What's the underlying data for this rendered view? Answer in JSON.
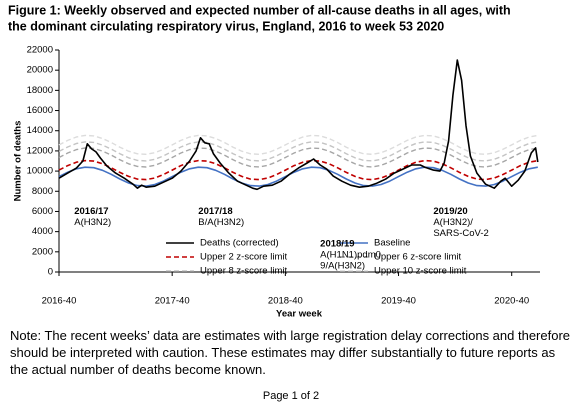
{
  "chart_data": {
    "type": "line",
    "title_lines": [
      "Figure 1: Weekly observed and expected number of all-cause deaths in all ages, with",
      "the dominant circulating respiratory virus, England, 2016 to week 53 2020"
    ],
    "xlabel": "Year week",
    "ylabel": "Number of deaths",
    "xlim": [
      0,
      221
    ],
    "ylim": [
      0,
      22000
    ],
    "xticks": [
      {
        "value": 0,
        "label": "2016-40"
      },
      {
        "value": 52,
        "label": "2017-40"
      },
      {
        "value": 104,
        "label": "2018-40"
      },
      {
        "value": 156,
        "label": "2019-40"
      },
      {
        "value": 208,
        "label": "2020-40"
      }
    ],
    "yticks": [
      0,
      2000,
      4000,
      6000,
      8000,
      10000,
      12000,
      14000,
      16000,
      18000,
      20000,
      22000
    ],
    "grid": false,
    "legend": "bottom",
    "x": [
      0,
      4,
      8,
      12,
      16,
      20,
      24,
      28,
      32,
      36,
      40,
      44,
      48,
      52,
      56,
      60,
      64,
      68,
      72,
      76,
      80,
      84,
      88,
      92,
      96,
      100,
      104,
      108,
      112,
      116,
      120,
      124,
      128,
      132,
      136,
      140,
      144,
      148,
      152,
      156,
      160,
      164,
      168,
      172,
      176,
      180,
      184,
      188,
      192,
      196,
      200,
      204,
      208,
      212,
      216,
      220
    ],
    "series": [
      {
        "name": "Deaths (corrected)",
        "color": "#000000",
        "dashed": false,
        "width": 1.6,
        "x": [
          0,
          4,
          8,
          11,
          13,
          15,
          17,
          19,
          22,
          26,
          30,
          34,
          36,
          38,
          40,
          44,
          48,
          52,
          56,
          60,
          63,
          65,
          67,
          69,
          71,
          74,
          78,
          82,
          86,
          89,
          91,
          94,
          98,
          102,
          106,
          110,
          114,
          117,
          120,
          123,
          126,
          130,
          134,
          138,
          142,
          146,
          150,
          154,
          158,
          162,
          166,
          168,
          172,
          175,
          177,
          179,
          181,
          183,
          185,
          187,
          189,
          192,
          196,
          200,
          203,
          205,
          208,
          211,
          214,
          217,
          219,
          220
        ],
        "values": [
          9300,
          9800,
          10300,
          11000,
          12700,
          12200,
          11900,
          11300,
          10500,
          9800,
          9300,
          8700,
          8300,
          8600,
          8400,
          8500,
          8900,
          9300,
          10000,
          11000,
          12000,
          13300,
          12800,
          12700,
          11700,
          10800,
          9800,
          9000,
          8600,
          8300,
          8200,
          8500,
          8600,
          9000,
          9700,
          10300,
          10800,
          11200,
          10600,
          10200,
          9500,
          9000,
          8600,
          8400,
          8500,
          8800,
          9200,
          9800,
          10200,
          10600,
          10600,
          10400,
          10100,
          10000,
          10800,
          13000,
          17500,
          21000,
          19000,
          14500,
          11500,
          9800,
          8700,
          8300,
          9000,
          9300,
          8500,
          9100,
          10000,
          11800,
          12300,
          10900
        ]
      },
      {
        "name": "Baseline",
        "color": "#4472c4",
        "dashed": false,
        "width": 1.6,
        "values": [
          9450,
          9890,
          10230,
          10390,
          10340,
          10080,
          9680,
          9220,
          8820,
          8560,
          8510,
          8670,
          9010,
          9450,
          9890,
          10230,
          10390,
          10340,
          10080,
          9680,
          9220,
          8820,
          8560,
          8510,
          8670,
          9010,
          9450,
          9890,
          10230,
          10390,
          10340,
          10080,
          9680,
          9220,
          8820,
          8560,
          8510,
          8670,
          9010,
          9450,
          9890,
          10230,
          10390,
          10340,
          10080,
          9680,
          9220,
          8820,
          8560,
          8510,
          8670,
          9010,
          9450,
          9890,
          10230,
          10390
        ]
      },
      {
        "name": "Upper 2 z-score limit",
        "color": "#c00000",
        "dashed": true,
        "width": 1.6,
        "values": [
          10100,
          10540,
          10880,
          11040,
          10990,
          10730,
          10330,
          9870,
          9470,
          9210,
          9160,
          9320,
          9660,
          10100,
          10540,
          10880,
          11040,
          10990,
          10730,
          10330,
          9870,
          9470,
          9210,
          9160,
          9320,
          9660,
          10100,
          10540,
          10880,
          11040,
          10990,
          10730,
          10330,
          9870,
          9470,
          9210,
          9160,
          9320,
          9660,
          10100,
          10540,
          10880,
          11040,
          10990,
          10730,
          10330,
          9870,
          9470,
          9210,
          9160,
          9320,
          9660,
          10100,
          10540,
          10880,
          11040
        ]
      },
      {
        "name": "Upper 6 z-score limit",
        "color": "#a6a6a6",
        "dashed": true,
        "width": 1.4,
        "values": [
          11350,
          11790,
          12130,
          12290,
          12240,
          11980,
          11580,
          11120,
          10720,
          10460,
          10410,
          10570,
          10910,
          11350,
          11790,
          12130,
          12290,
          12240,
          11980,
          11580,
          11120,
          10720,
          10460,
          10410,
          10570,
          10910,
          11350,
          11790,
          12130,
          12290,
          12240,
          11980,
          11580,
          11120,
          10720,
          10460,
          10410,
          10570,
          10910,
          11350,
          11790,
          12130,
          12290,
          12240,
          11980,
          11580,
          11120,
          10720,
          10460,
          10410,
          10570,
          10910,
          11350,
          11790,
          12130,
          12290
        ]
      },
      {
        "name": "Upper 8 z-score limit",
        "color": "#c4c4c4",
        "dashed": true,
        "width": 1.4,
        "values": [
          11950,
          12390,
          12730,
          12890,
          12840,
          12580,
          12180,
          11720,
          11320,
          11060,
          11010,
          11170,
          11510,
          11950,
          12390,
          12730,
          12890,
          12840,
          12580,
          12180,
          11720,
          11320,
          11060,
          11010,
          11170,
          11510,
          11950,
          12390,
          12730,
          12890,
          12840,
          12580,
          12180,
          11720,
          11320,
          11060,
          11010,
          11170,
          11510,
          11950,
          12390,
          12730,
          12890,
          12840,
          12580,
          12180,
          11720,
          11320,
          11060,
          11010,
          11170,
          11510,
          11950,
          12390,
          12730,
          12890
        ]
      },
      {
        "name": "Upper 10 z-score limit",
        "color": "#dcdcdc",
        "dashed": true,
        "width": 1.4,
        "values": [
          12600,
          13040,
          13380,
          13540,
          13490,
          13230,
          12830,
          12370,
          11970,
          11710,
          11660,
          11820,
          12160,
          12600,
          13040,
          13380,
          13540,
          13490,
          13230,
          12830,
          12370,
          11970,
          11710,
          11660,
          11820,
          12160,
          12600,
          13040,
          13380,
          13540,
          13490,
          13230,
          12830,
          12370,
          11970,
          11710,
          11660,
          11820,
          12160,
          12600,
          13040,
          13380,
          13540,
          13490,
          13230,
          12830,
          12370,
          11970,
          11710,
          11660,
          11820,
          12160,
          12600,
          13040,
          13380,
          13540
        ]
      }
    ],
    "annotations": [
      {
        "x": 7,
        "y": 6000,
        "lines": [
          "2016/17",
          "A(H3N2)"
        ]
      },
      {
        "x": 64,
        "y": 6000,
        "lines": [
          "2017/18",
          "B/A(H3N2)"
        ]
      },
      {
        "x": 120,
        "y": 2800,
        "lines": [
          "2018/19",
          "A(H1N1)pdm0",
          "9/A(H3N2)"
        ]
      },
      {
        "x": 172,
        "y": 6000,
        "lines": [
          "2019/20",
          "A(H3N2)/",
          "SARS-CoV-2"
        ]
      }
    ]
  },
  "note": "Note: The recent weeks’ data are estimates with large registration delay corrections and therefore should be interpreted with caution. These estimates may differ substantially to future reports as the actual number of deaths become known.",
  "footer": "Page 1 of 2"
}
